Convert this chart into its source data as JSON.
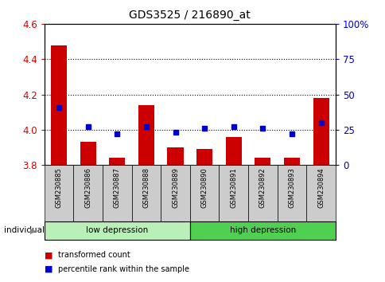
{
  "title": "GDS3525 / 216890_at",
  "samples": [
    "GSM230885",
    "GSM230886",
    "GSM230887",
    "GSM230888",
    "GSM230889",
    "GSM230890",
    "GSM230891",
    "GSM230892",
    "GSM230893",
    "GSM230894"
  ],
  "transformed_count": [
    4.48,
    3.93,
    3.84,
    4.14,
    3.9,
    3.89,
    3.96,
    3.84,
    3.84,
    4.18
  ],
  "percentile_rank": [
    41,
    27,
    22,
    27,
    23,
    26,
    27,
    26,
    22,
    30
  ],
  "ylim_left": [
    3.8,
    4.6
  ],
  "ylim_right": [
    0,
    100
  ],
  "yticks_left": [
    3.8,
    4.0,
    4.2,
    4.4,
    4.6
  ],
  "yticks_right": [
    0,
    25,
    50,
    75,
    100
  ],
  "ytick_labels_right": [
    "0",
    "25",
    "50",
    "75",
    "100%"
  ],
  "groups": [
    {
      "label": "low depression",
      "indices": [
        0,
        1,
        2,
        3,
        4
      ],
      "color": "#b8f0b8"
    },
    {
      "label": "high depression",
      "indices": [
        5,
        6,
        7,
        8,
        9
      ],
      "color": "#50d050"
    }
  ],
  "bar_color": "#cc0000",
  "marker_color": "#0000cc",
  "bar_bottom": 3.8,
  "grid_color": "#000000",
  "background_color": "#ffffff",
  "tick_color_left": "#cc0000",
  "tick_color_right": "#0000cc",
  "legend_items": [
    "transformed count",
    "percentile rank within the sample"
  ],
  "legend_colors": [
    "#cc0000",
    "#0000cc"
  ],
  "label_box_color": "#cccccc",
  "individual_label": "individual"
}
